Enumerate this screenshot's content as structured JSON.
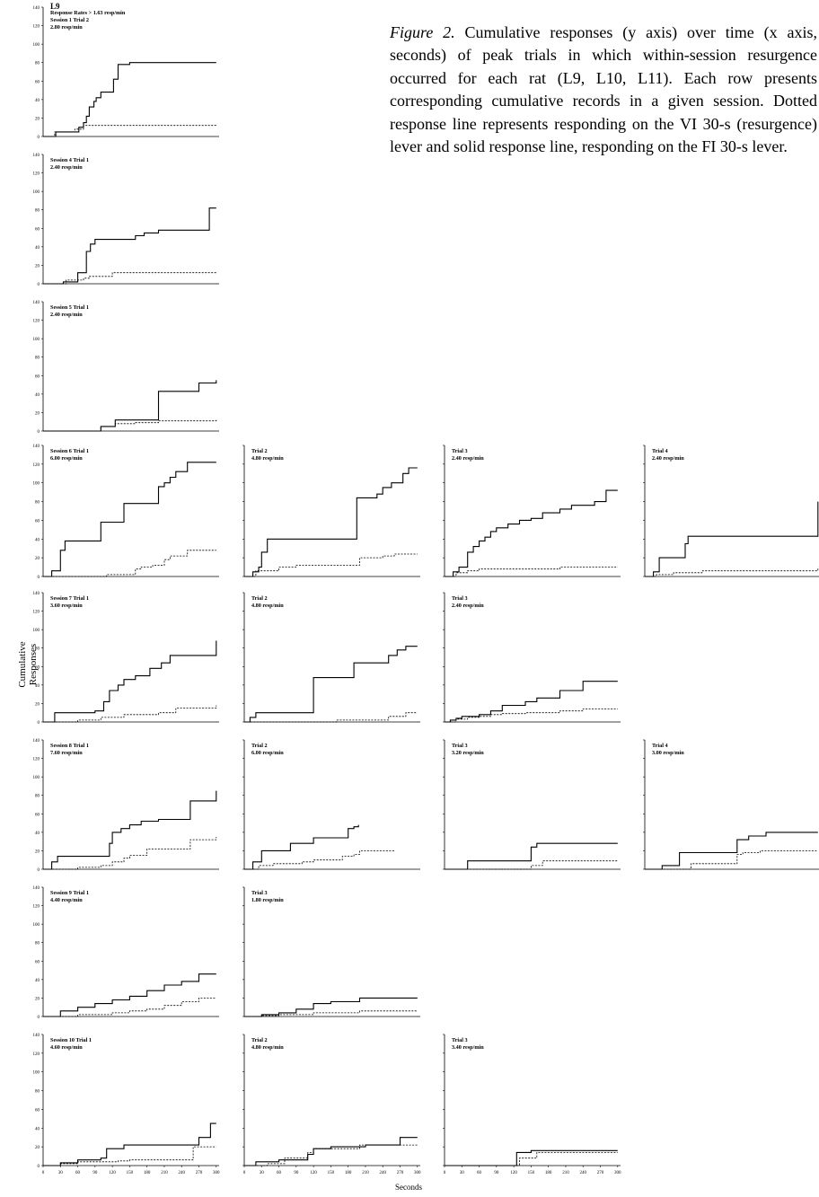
{
  "caption": {
    "lead": "Figure 2.",
    "text": " Cumulative responses (y axis) over time (x axis, seconds) of peak trials in which within-ses­sion resurgence occurred for each rat (L9, L10, L11). Each row presents corresponding cumula­tive records in a given session. Dotted response line represents responding on the VI 30-s (resur­gence) lever and solid response line, responding on the FI 30-s lever."
  },
  "shared": {
    "ylabel": "Cumulative Responses",
    "xlabel": "Seconds",
    "yticks": [
      0,
      20,
      40,
      60,
      80,
      100,
      120,
      140
    ],
    "xticks": [
      0,
      30,
      60,
      90,
      120,
      150,
      180,
      210,
      240,
      270,
      300
    ],
    "xlim": [
      0,
      305
    ],
    "ylim": [
      0,
      140
    ]
  },
  "chart_data": [
    {
      "type": "line",
      "subject": "L9",
      "labels": [
        "Response Rates > 1.63 resp/min",
        "Session 1 Trial  2",
        "2.80 resp/min"
      ],
      "series": [
        {
          "style": "solid",
          "x": [
            0,
            15,
            22,
            55,
            62,
            70,
            75,
            80,
            88,
            92,
            100,
            118,
            122,
            130,
            150,
            160,
            300
          ],
          "y": [
            0,
            0,
            5,
            5,
            10,
            15,
            22,
            32,
            38,
            42,
            48,
            48,
            62,
            78,
            80,
            80,
            80
          ]
        },
        {
          "style": "dotted",
          "x": [
            0,
            15,
            20,
            55,
            70,
            300
          ],
          "y": [
            0,
            0,
            5,
            8,
            12,
            12
          ]
        }
      ]
    },
    {
      "type": "line",
      "labels": [
        "Session 4 Trial  1",
        "2.40 resp/min"
      ],
      "series": [
        {
          "style": "solid",
          "x": [
            0,
            25,
            35,
            60,
            68,
            75,
            82,
            90,
            120,
            160,
            175,
            200,
            288,
            300
          ],
          "y": [
            0,
            0,
            2,
            12,
            12,
            35,
            43,
            48,
            48,
            52,
            55,
            58,
            82,
            82
          ]
        },
        {
          "style": "dotted",
          "x": [
            0,
            25,
            40,
            70,
            80,
            100,
            120,
            300
          ],
          "y": [
            0,
            0,
            4,
            6,
            8,
            8,
            12,
            12
          ]
        }
      ]
    },
    {
      "type": "line",
      "labels": [
        "Session 5 Trial  1",
        "2.40 resp/min"
      ],
      "series": [
        {
          "style": "solid",
          "x": [
            0,
            90,
            100,
            125,
            160,
            200,
            255,
            270,
            300
          ],
          "y": [
            0,
            0,
            5,
            12,
            12,
            43,
            43,
            52,
            55
          ]
        },
        {
          "style": "dotted",
          "x": [
            0,
            95,
            100,
            125,
            160,
            200,
            300
          ],
          "y": [
            0,
            0,
            5,
            8,
            9,
            11,
            12
          ]
        }
      ]
    },
    {
      "type": "line",
      "labels": [
        "Session 6 Trial  1",
        "6.00 resp/min"
      ],
      "series": [
        {
          "style": "solid",
          "x": [
            0,
            15,
            30,
            38,
            90,
            100,
            130,
            140,
            180,
            200,
            210,
            220,
            230,
            250,
            300
          ],
          "y": [
            0,
            6,
            28,
            38,
            38,
            58,
            58,
            78,
            78,
            96,
            100,
            106,
            112,
            122,
            122
          ]
        },
        {
          "style": "dotted",
          "x": [
            0,
            90,
            110,
            140,
            160,
            170,
            190,
            210,
            220,
            250,
            300
          ],
          "y": [
            0,
            0,
            2,
            2,
            8,
            10,
            12,
            18,
            22,
            28,
            28
          ]
        }
      ]
    },
    {
      "type": "line",
      "labels": [
        "Trial  2",
        "4.80 resp/min"
      ],
      "series": [
        {
          "style": "solid",
          "x": [
            0,
            15,
            25,
            30,
            40,
            60,
            190,
            195,
            230,
            240,
            255,
            275,
            285,
            300
          ],
          "y": [
            0,
            5,
            10,
            26,
            40,
            40,
            40,
            84,
            88,
            95,
            100,
            110,
            116,
            116
          ]
        },
        {
          "style": "dotted",
          "x": [
            0,
            20,
            60,
            90,
            190,
            200,
            240,
            260,
            300
          ],
          "y": [
            0,
            6,
            10,
            12,
            12,
            20,
            22,
            24,
            24
          ]
        }
      ]
    },
    {
      "type": "line",
      "labels": [
        "Trial  3",
        "2.40 resp/min"
      ],
      "series": [
        {
          "style": "solid",
          "x": [
            0,
            15,
            25,
            40,
            50,
            60,
            70,
            80,
            90,
            110,
            130,
            150,
            170,
            200,
            220,
            260,
            280,
            300
          ],
          "y": [
            0,
            5,
            10,
            26,
            32,
            38,
            42,
            48,
            52,
            56,
            60,
            62,
            68,
            72,
            76,
            80,
            92,
            92
          ]
        },
        {
          "style": "dotted",
          "x": [
            0,
            20,
            40,
            60,
            100,
            200,
            300
          ],
          "y": [
            0,
            4,
            6,
            8,
            8,
            10,
            10
          ]
        }
      ]
    },
    {
      "type": "line",
      "labels": [
        "Trial  4",
        "2.40 resp/min"
      ],
      "series": [
        {
          "style": "solid",
          "x": [
            0,
            15,
            25,
            45,
            70,
            75,
            290,
            300
          ],
          "y": [
            0,
            5,
            20,
            20,
            35,
            43,
            43,
            80
          ]
        },
        {
          "style": "dotted",
          "x": [
            0,
            20,
            50,
            100,
            280,
            300
          ],
          "y": [
            0,
            2,
            4,
            6,
            6,
            10
          ]
        }
      ]
    },
    {
      "type": "line",
      "labels": [
        "Session 7 Trial 1",
        "3.60 resp/min"
      ],
      "series": [
        {
          "style": "solid",
          "x": [
            0,
            20,
            50,
            90,
            105,
            115,
            130,
            140,
            160,
            185,
            205,
            220,
            295,
            300
          ],
          "y": [
            0,
            10,
            10,
            12,
            22,
            34,
            40,
            46,
            50,
            58,
            64,
            72,
            72,
            88
          ]
        },
        {
          "style": "dotted",
          "x": [
            0,
            60,
            100,
            140,
            200,
            230,
            295,
            300
          ],
          "y": [
            0,
            2,
            5,
            8,
            10,
            15,
            15,
            18
          ]
        }
      ]
    },
    {
      "type": "line",
      "labels": [
        "Trial 2",
        "4.80 resp/min"
      ],
      "series": [
        {
          "style": "solid",
          "x": [
            0,
            10,
            20,
            110,
            120,
            160,
            190,
            240,
            250,
            265,
            280,
            300
          ],
          "y": [
            0,
            5,
            10,
            10,
            48,
            48,
            64,
            64,
            72,
            78,
            82,
            82
          ]
        },
        {
          "style": "dotted",
          "x": [
            0,
            160,
            230,
            250,
            280,
            300
          ],
          "y": [
            0,
            2,
            2,
            6,
            10,
            10
          ]
        }
      ]
    },
    {
      "type": "line",
      "labels": [
        "Trial 3",
        "2.40 resp/min"
      ],
      "series": [
        {
          "style": "solid",
          "x": [
            0,
            10,
            20,
            30,
            60,
            80,
            100,
            140,
            160,
            200,
            240,
            300
          ],
          "y": [
            0,
            2,
            4,
            6,
            8,
            12,
            18,
            22,
            26,
            34,
            44,
            44
          ]
        },
        {
          "style": "dotted",
          "x": [
            0,
            20,
            40,
            60,
            80,
            100,
            140,
            200,
            240,
            300
          ],
          "y": [
            0,
            3,
            5,
            6,
            8,
            9,
            10,
            12,
            14,
            14
          ]
        }
      ]
    },
    {
      "type": "line",
      "labels": [
        "Session 8 Trial 1",
        "7.60 resp/min"
      ],
      "series": [
        {
          "style": "solid",
          "x": [
            0,
            15,
            25,
            60,
            115,
            120,
            135,
            150,
            170,
            200,
            255,
            295,
            300
          ],
          "y": [
            0,
            8,
            14,
            14,
            28,
            40,
            44,
            48,
            52,
            54,
            74,
            74,
            85
          ]
        },
        {
          "style": "dotted",
          "x": [
            0,
            60,
            100,
            120,
            140,
            150,
            180,
            240,
            255,
            300
          ],
          "y": [
            0,
            2,
            4,
            8,
            12,
            15,
            22,
            22,
            32,
            35
          ]
        }
      ]
    },
    {
      "type": "line",
      "labels": [
        "Trial 2",
        "6.00 resp/min"
      ],
      "series": [
        {
          "style": "solid",
          "x": [
            0,
            15,
            30,
            70,
            80,
            120,
            180,
            190,
            198
          ],
          "y": [
            0,
            8,
            20,
            20,
            28,
            34,
            44,
            46,
            48
          ]
        },
        {
          "style": "dotted",
          "x": [
            0,
            25,
            50,
            100,
            120,
            170,
            190,
            200,
            230,
            260
          ],
          "y": [
            0,
            4,
            6,
            8,
            10,
            14,
            16,
            20,
            20,
            20
          ]
        }
      ]
    },
    {
      "type": "line",
      "labels": [
        "Trial 3",
        "3.20 resp/min"
      ],
      "series": [
        {
          "style": "solid",
          "x": [
            0,
            40,
            140,
            150,
            160,
            300
          ],
          "y": [
            0,
            9,
            9,
            24,
            28,
            28
          ]
        },
        {
          "style": "dotted",
          "x": [
            0,
            140,
            150,
            170,
            300
          ],
          "y": [
            0,
            0,
            4,
            9,
            9
          ]
        }
      ]
    },
    {
      "type": "line",
      "labels": [
        "Trial 4",
        "3.00 resp/min"
      ],
      "series": [
        {
          "style": "solid",
          "x": [
            0,
            30,
            60,
            150,
            160,
            180,
            210,
            300
          ],
          "y": [
            0,
            4,
            18,
            18,
            32,
            36,
            40,
            40
          ]
        },
        {
          "style": "dotted",
          "x": [
            0,
            80,
            160,
            170,
            200,
            300
          ],
          "y": [
            0,
            6,
            16,
            18,
            20,
            20
          ]
        }
      ]
    },
    {
      "type": "line",
      "labels": [
        "Session 9  Trial 1",
        "4.40 resp/min"
      ],
      "series": [
        {
          "style": "solid",
          "x": [
            0,
            30,
            60,
            90,
            120,
            150,
            180,
            210,
            240,
            270,
            300
          ],
          "y": [
            0,
            6,
            10,
            14,
            18,
            22,
            28,
            34,
            38,
            46,
            46
          ]
        },
        {
          "style": "dotted",
          "x": [
            0,
            60,
            120,
            150,
            180,
            210,
            240,
            270,
            300
          ],
          "y": [
            0,
            2,
            4,
            6,
            8,
            12,
            16,
            20,
            20
          ]
        }
      ]
    },
    {
      "type": "line",
      "labels": [
        "Trial 3",
        "1.80 resp/min"
      ],
      "series": [
        {
          "style": "solid",
          "x": [
            0,
            30,
            60,
            90,
            120,
            150,
            200,
            300
          ],
          "y": [
            0,
            2,
            4,
            8,
            14,
            16,
            20,
            20
          ]
        },
        {
          "style": "dotted",
          "x": [
            0,
            30,
            60,
            120,
            200,
            300
          ],
          "y": [
            0,
            1,
            2,
            4,
            6,
            6
          ]
        }
      ]
    },
    {
      "type": "line",
      "labels": [
        "Session 10 Trial 1",
        "4.60 resp/min"
      ],
      "series": [
        {
          "style": "solid",
          "x": [
            0,
            30,
            60,
            100,
            110,
            140,
            250,
            270,
            290,
            300
          ],
          "y": [
            0,
            3,
            6,
            8,
            18,
            22,
            22,
            30,
            45,
            45
          ]
        },
        {
          "style": "dotted",
          "x": [
            0,
            30,
            60,
            130,
            150,
            240,
            260,
            300
          ],
          "y": [
            0,
            2,
            4,
            5,
            6,
            6,
            20,
            20
          ]
        }
      ]
    },
    {
      "type": "line",
      "labels": [
        "Trial 2",
        "4.80 resp/min"
      ],
      "series": [
        {
          "style": "solid",
          "x": [
            0,
            20,
            40,
            60,
            110,
            120,
            150,
            210,
            270,
            300
          ],
          "y": [
            0,
            4,
            4,
            6,
            12,
            18,
            20,
            22,
            30,
            30
          ]
        },
        {
          "style": "dotted",
          "x": [
            0,
            40,
            70,
            110,
            120,
            150,
            200,
            250,
            300
          ],
          "y": [
            0,
            2,
            8,
            14,
            18,
            18,
            22,
            22,
            22
          ]
        }
      ]
    },
    {
      "type": "line",
      "labels": [
        "Trial 3",
        "3.40 resp/min"
      ],
      "series": [
        {
          "style": "solid",
          "x": [
            0,
            120,
            125,
            150,
            300
          ],
          "y": [
            0,
            0,
            14,
            16,
            16
          ]
        },
        {
          "style": "dotted",
          "x": [
            0,
            120,
            130,
            160,
            300
          ],
          "y": [
            0,
            0,
            8,
            14,
            14
          ]
        }
      ]
    }
  ]
}
